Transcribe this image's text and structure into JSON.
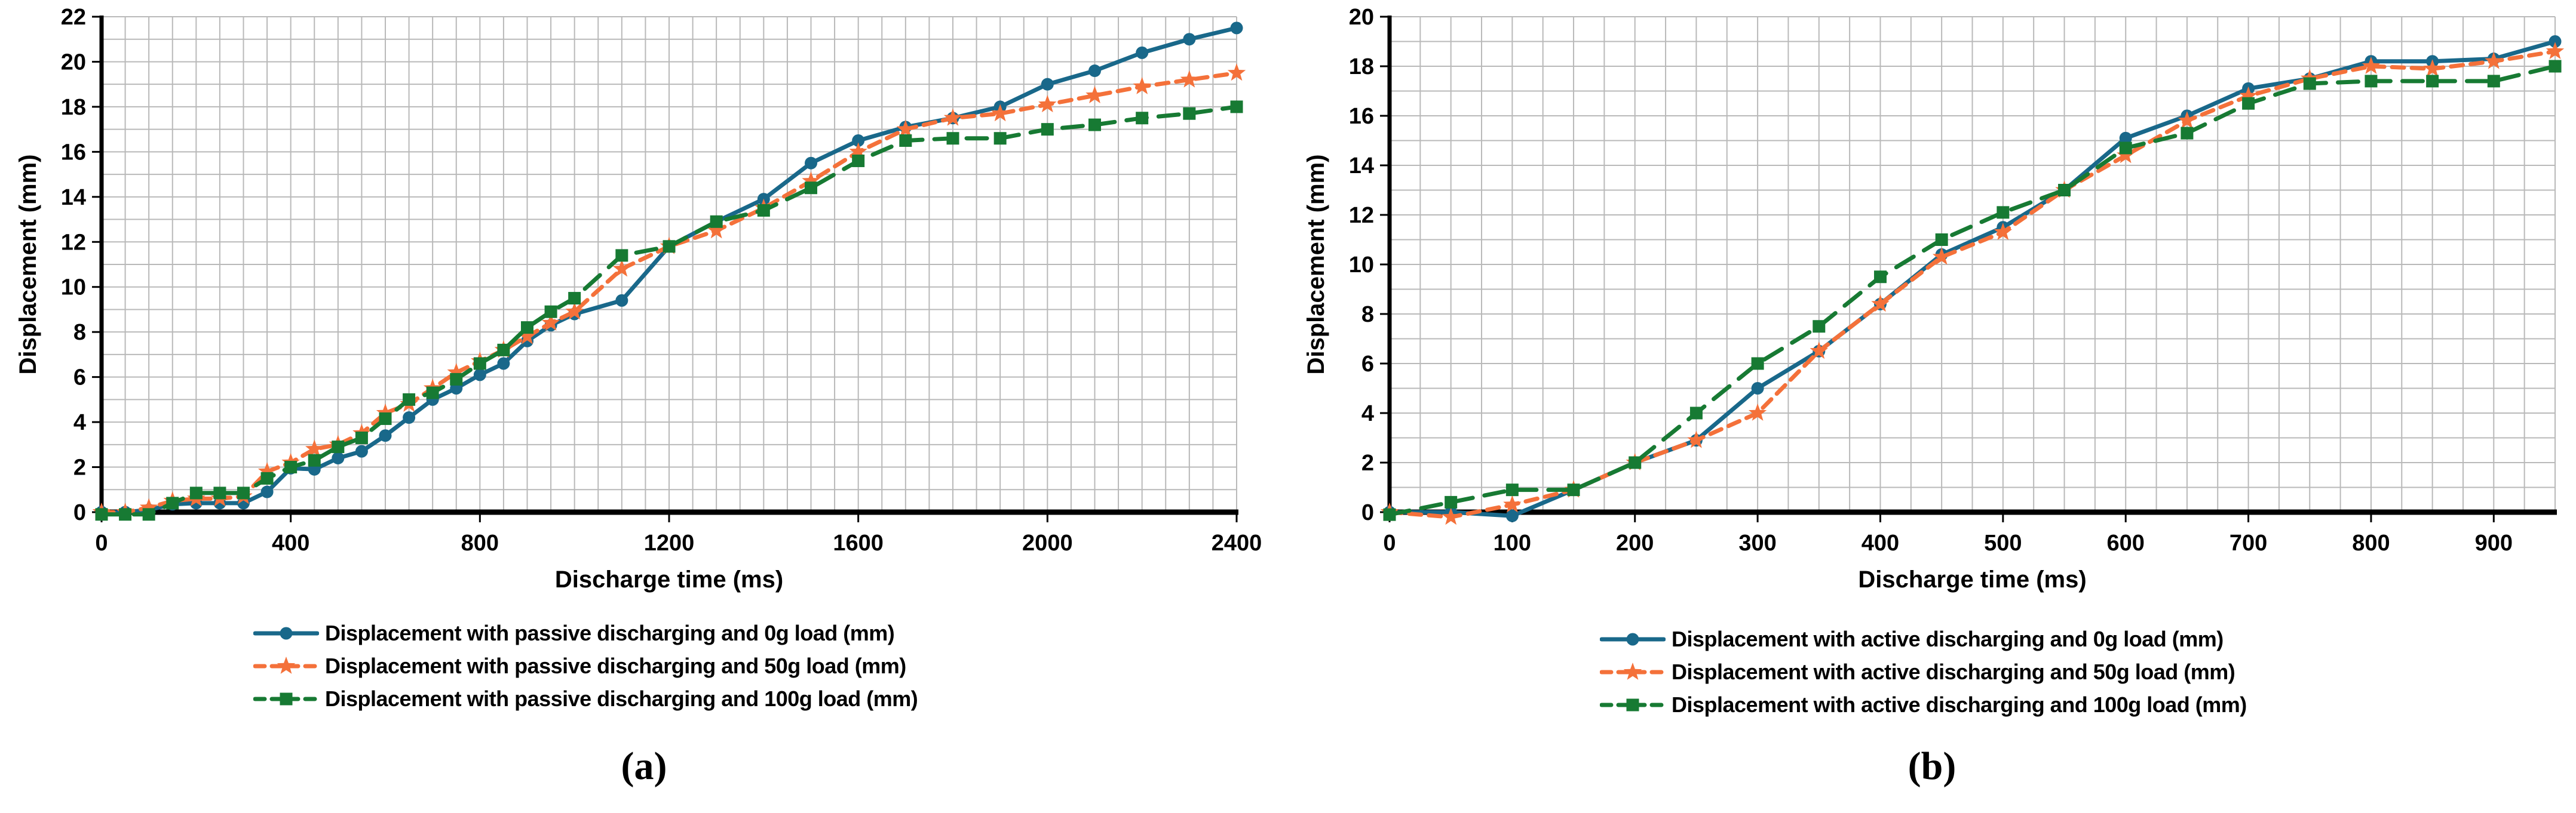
{
  "colors": {
    "blue": "#19688A",
    "orange": "#F4713A",
    "green": "#177A33",
    "grid": "#B9B9B9",
    "axis": "#000000",
    "background": "#FFFFFF"
  },
  "chart_data": [
    {
      "type": "line",
      "caption": "(a)",
      "xlabel": "Discharge time (ms)",
      "ylabel": "Displacement (mm)",
      "xlim": [
        0,
        2400
      ],
      "ylim": [
        0,
        22
      ],
      "x_ticks": [
        0,
        400,
        800,
        1200,
        1600,
        2000,
        2400
      ],
      "y_ticks": [
        0,
        2,
        4,
        6,
        8,
        10,
        12,
        14,
        16,
        18,
        20,
        22
      ],
      "x_minor": 50,
      "y_minor": 1,
      "grid": true,
      "legend_position": "below-left",
      "series": [
        {
          "name": "Displacement with passive discharging and 0g load (mm)",
          "color": "#19688A",
          "dash": null,
          "marker": "circle",
          "points": [
            [
              0,
              0
            ],
            [
              50,
              0
            ],
            [
              100,
              0.1
            ],
            [
              150,
              0.35
            ],
            [
              200,
              0.4
            ],
            [
              250,
              0.4
            ],
            [
              300,
              0.4
            ],
            [
              350,
              0.9
            ],
            [
              400,
              1.95
            ],
            [
              450,
              1.9
            ],
            [
              500,
              2.4
            ],
            [
              550,
              2.7
            ],
            [
              600,
              3.4
            ],
            [
              650,
              4.2
            ],
            [
              700,
              5.0
            ],
            [
              750,
              5.5
            ],
            [
              800,
              6.1
            ],
            [
              850,
              6.6
            ],
            [
              900,
              7.6
            ],
            [
              950,
              8.3
            ],
            [
              1000,
              8.8
            ],
            [
              1100,
              9.4
            ],
            [
              1200,
              11.8
            ],
            [
              1300,
              12.9
            ],
            [
              1400,
              13.9
            ],
            [
              1500,
              15.5
            ],
            [
              1600,
              16.5
            ],
            [
              1700,
              17.1
            ],
            [
              1800,
              17.5
            ],
            [
              1900,
              18.0
            ],
            [
              2000,
              19.0
            ],
            [
              2100,
              19.6
            ],
            [
              2200,
              20.4
            ],
            [
              2300,
              21.0
            ],
            [
              2400,
              21.5
            ]
          ]
        },
        {
          "name": "Displacement with passive discharging and 50g load (mm)",
          "color": "#F4713A",
          "dash": [
            20,
            13
          ],
          "marker": "star",
          "points": [
            [
              0,
              0
            ],
            [
              50,
              0
            ],
            [
              100,
              0.2
            ],
            [
              150,
              0.5
            ],
            [
              200,
              0.6
            ],
            [
              250,
              0.6
            ],
            [
              300,
              0.7
            ],
            [
              350,
              1.8
            ],
            [
              400,
              2.2
            ],
            [
              450,
              2.8
            ],
            [
              500,
              3.0
            ],
            [
              550,
              3.5
            ],
            [
              600,
              4.4
            ],
            [
              650,
              4.8
            ],
            [
              700,
              5.5
            ],
            [
              750,
              6.2
            ],
            [
              800,
              6.7
            ],
            [
              850,
              7.2
            ],
            [
              900,
              7.8
            ],
            [
              950,
              8.4
            ],
            [
              1000,
              8.9
            ],
            [
              1100,
              10.8
            ],
            [
              1200,
              11.8
            ],
            [
              1300,
              12.5
            ],
            [
              1400,
              13.5
            ],
            [
              1500,
              14.7
            ],
            [
              1600,
              16.0
            ],
            [
              1700,
              17.0
            ],
            [
              1800,
              17.5
            ],
            [
              1900,
              17.7
            ],
            [
              2000,
              18.1
            ],
            [
              2100,
              18.5
            ],
            [
              2200,
              18.9
            ],
            [
              2300,
              19.2
            ],
            [
              2400,
              19.5
            ]
          ]
        },
        {
          "name": "Displacement with passive discharging and 100g load (mm)",
          "color": "#177A33",
          "dash": [
            34,
            20
          ],
          "marker": "square",
          "points": [
            [
              0,
              -0.1
            ],
            [
              50,
              -0.1
            ],
            [
              100,
              -0.1
            ],
            [
              150,
              0.4
            ],
            [
              200,
              0.85
            ],
            [
              250,
              0.85
            ],
            [
              300,
              0.85
            ],
            [
              350,
              1.5
            ],
            [
              400,
              2.0
            ],
            [
              450,
              2.3
            ],
            [
              500,
              2.9
            ],
            [
              550,
              3.3
            ],
            [
              600,
              4.15
            ],
            [
              650,
              5.0
            ],
            [
              700,
              5.3
            ],
            [
              750,
              5.9
            ],
            [
              800,
              6.6
            ],
            [
              850,
              7.2
            ],
            [
              900,
              8.2
            ],
            [
              950,
              8.9
            ],
            [
              1000,
              9.5
            ],
            [
              1100,
              11.4
            ],
            [
              1200,
              11.8
            ],
            [
              1300,
              12.9
            ],
            [
              1400,
              13.4
            ],
            [
              1500,
              14.4
            ],
            [
              1600,
              15.6
            ],
            [
              1700,
              16.5
            ],
            [
              1800,
              16.6
            ],
            [
              1900,
              16.6
            ],
            [
              2000,
              17.0
            ],
            [
              2100,
              17.2
            ],
            [
              2200,
              17.5
            ],
            [
              2300,
              17.7
            ],
            [
              2400,
              18.0
            ]
          ]
        }
      ]
    },
    {
      "type": "line",
      "caption": "(b)",
      "xlabel": "Discharge time (ms)",
      "ylabel": "Displacement (mm)",
      "xlim": [
        0,
        950
      ],
      "ylim": [
        0,
        20
      ],
      "x_ticks": [
        0,
        100,
        200,
        300,
        400,
        500,
        600,
        700,
        800,
        900
      ],
      "y_ticks": [
        0,
        2,
        4,
        6,
        8,
        10,
        12,
        14,
        16,
        18,
        20
      ],
      "x_minor": 25,
      "y_minor": 1,
      "grid": true,
      "legend_position": "below-left",
      "series": [
        {
          "name": "Displacement with active discharging and 0g load (mm)",
          "color": "#19688A",
          "dash": null,
          "marker": "circle",
          "points": [
            [
              0,
              0
            ],
            [
              50,
              0
            ],
            [
              100,
              -0.15
            ],
            [
              150,
              0.9
            ],
            [
              200,
              2.0
            ],
            [
              250,
              2.9
            ],
            [
              300,
              5.0
            ],
            [
              350,
              6.5
            ],
            [
              400,
              8.4
            ],
            [
              450,
              10.4
            ],
            [
              500,
              11.5
            ],
            [
              550,
              13.0
            ],
            [
              600,
              15.1
            ],
            [
              650,
              16.0
            ],
            [
              700,
              17.1
            ],
            [
              750,
              17.5
            ],
            [
              800,
              18.2
            ],
            [
              850,
              18.2
            ],
            [
              900,
              18.3
            ],
            [
              950,
              19.0
            ]
          ]
        },
        {
          "name": "Displacement with active discharging and 50g load (mm)",
          "color": "#F4713A",
          "dash": [
            20,
            13
          ],
          "marker": "star",
          "points": [
            [
              0,
              0
            ],
            [
              50,
              -0.2
            ],
            [
              100,
              0.3
            ],
            [
              150,
              0.9
            ],
            [
              200,
              2.0
            ],
            [
              250,
              2.9
            ],
            [
              300,
              4.0
            ],
            [
              350,
              6.5
            ],
            [
              400,
              8.4
            ],
            [
              450,
              10.3
            ],
            [
              500,
              11.3
            ],
            [
              550,
              13.0
            ],
            [
              600,
              14.4
            ],
            [
              650,
              15.8
            ],
            [
              700,
              16.8
            ],
            [
              750,
              17.5
            ],
            [
              800,
              18.0
            ],
            [
              850,
              17.9
            ],
            [
              900,
              18.2
            ],
            [
              950,
              18.6
            ]
          ]
        },
        {
          "name": "Displacement with active discharging and 100g load (mm)",
          "color": "#177A33",
          "dash": [
            34,
            20
          ],
          "marker": "square",
          "points": [
            [
              0,
              -0.1
            ],
            [
              50,
              0.4
            ],
            [
              100,
              0.9
            ],
            [
              150,
              0.9
            ],
            [
              200,
              2.0
            ],
            [
              250,
              4.0
            ],
            [
              300,
              6.0
            ],
            [
              350,
              7.5
            ],
            [
              400,
              9.5
            ],
            [
              450,
              11.0
            ],
            [
              500,
              12.1
            ],
            [
              550,
              13.0
            ],
            [
              600,
              14.7
            ],
            [
              650,
              15.3
            ],
            [
              700,
              16.5
            ],
            [
              750,
              17.3
            ],
            [
              800,
              17.4
            ],
            [
              850,
              17.4
            ],
            [
              900,
              17.4
            ],
            [
              950,
              18.0
            ]
          ]
        }
      ]
    }
  ]
}
